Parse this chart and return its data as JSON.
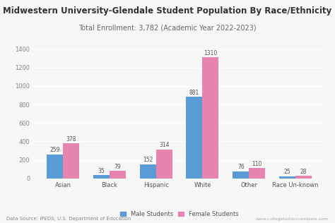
{
  "title": "Midwestern University-Glendale Student Population By Race/Ethnicity",
  "subtitle": "Total Enrollment: 3,782 (Academic Year 2022-2023)",
  "categories": [
    "Asian",
    "Black",
    "Hispanic",
    "White",
    "Other",
    "Race Un-known"
  ],
  "male_values": [
    259,
    35,
    152,
    881,
    76,
    25
  ],
  "female_values": [
    378,
    79,
    314,
    1310,
    110,
    28
  ],
  "male_color": "#5B9BD5",
  "female_color": "#E884B0",
  "bar_width": 0.35,
  "ylim": [
    0,
    1400
  ],
  "yticks": [
    0,
    200,
    400,
    600,
    800,
    1000,
    1200,
    1400
  ],
  "title_fontsize": 8.5,
  "subtitle_fontsize": 7.0,
  "tick_fontsize": 6.0,
  "label_fontsize": 5.5,
  "legend_labels": [
    "Male Students",
    "Female Students"
  ],
  "footnote": "Data Source: IPEDS, U.S. Department of Education",
  "watermark": "www.collegetuitioncompare.com",
  "background_color": "#f7f7f7"
}
